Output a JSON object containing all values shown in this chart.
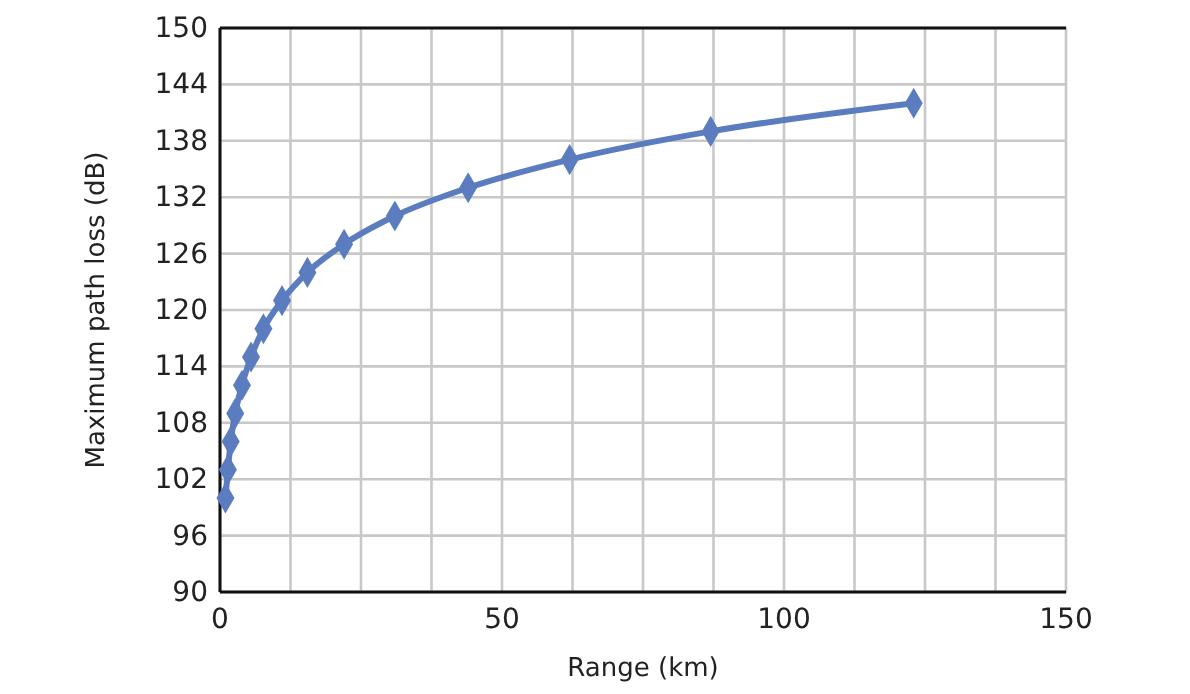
{
  "chart_data": {
    "type": "line",
    "xlabel": "Range (km)",
    "ylabel": "Maximum path loss (dB)",
    "series": [
      {
        "color": "#5b7dbf",
        "x": [
          0.97,
          1.4,
          1.9,
          2.7,
          3.9,
          5.5,
          7.7,
          11,
          15.5,
          22,
          31,
          44,
          62,
          87,
          123
        ],
        "values": [
          100,
          103,
          106,
          109,
          112,
          115,
          118,
          121,
          124,
          127,
          130,
          133,
          136,
          139,
          142
        ]
      }
    ],
    "xlim": [
      0,
      150
    ],
    "xticks": [
      0,
      {
        "value": 12.5,
        "label": null
      },
      {
        "value": 25,
        "label": null
      },
      {
        "value": 37.5,
        "label": null
      },
      50,
      {
        "value": 62.5,
        "label": null
      },
      {
        "value": 75,
        "label": null
      },
      {
        "value": 87.5,
        "label": null
      },
      100,
      {
        "value": 112.5,
        "label": null
      },
      {
        "value": 125,
        "label": null
      },
      {
        "value": 137.5,
        "label": null
      },
      150
    ],
    "ylim": [
      90,
      150
    ],
    "yticks": [
      90,
      96,
      102,
      108,
      114,
      120,
      126,
      132,
      138,
      144,
      150
    ],
    "grid": true,
    "marker": "diamond",
    "line_style": "solid"
  }
}
